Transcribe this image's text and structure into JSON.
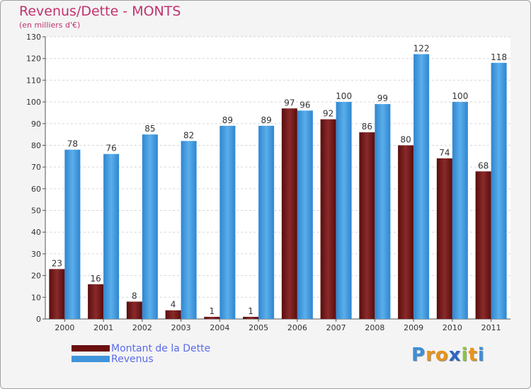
{
  "header": {
    "title": "Revenus/Dette - MONTS",
    "subtitle": "(en milliers d'€)"
  },
  "chart_data": {
    "type": "bar",
    "title": "Revenus/Dette - MONTS",
    "subtitle": "(en milliers d'€)",
    "xlabel": "",
    "ylabel": "",
    "ylim": [
      0,
      130
    ],
    "yticks": [
      0,
      10,
      20,
      30,
      40,
      50,
      60,
      70,
      80,
      90,
      100,
      110,
      120,
      130
    ],
    "grid": true,
    "legend_position": "bottom-left",
    "categories": [
      "2000",
      "2001",
      "2002",
      "2003",
      "2004",
      "2005",
      "2006",
      "2007",
      "2008",
      "2009",
      "2010",
      "2011"
    ],
    "series": [
      {
        "name": "Montant de la Dette",
        "color": "#7a1f1f",
        "values": [
          23,
          16,
          8,
          4,
          1,
          1,
          97,
          92,
          86,
          80,
          74,
          68
        ]
      },
      {
        "name": "Revenus",
        "color": "#4aa0e2",
        "values": [
          78,
          76,
          85,
          82,
          89,
          89,
          96,
          100,
          99,
          122,
          100,
          118
        ]
      }
    ]
  },
  "legend": {
    "items": [
      {
        "label": "Montant de la Dette",
        "color": "#6b0f0f"
      },
      {
        "label": "Revenus",
        "color": "#3f95dc"
      }
    ]
  },
  "logo": {
    "letters": [
      "P",
      "r",
      "o",
      "x",
      "i",
      "t",
      "i"
    ],
    "colors": [
      "#3b8fd8",
      "#e8941a",
      "#e8941a",
      "#2a66c4",
      "#8bc53f",
      "#e8941a",
      "#3b8fd8"
    ]
  }
}
